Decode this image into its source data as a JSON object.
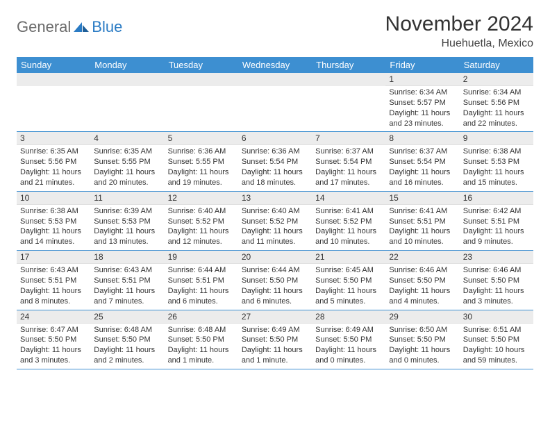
{
  "brand": {
    "part1": "General",
    "part2": "Blue"
  },
  "title": "November 2024",
  "location": "Huehuetla, Mexico",
  "colors": {
    "header_bg": "#3d8fd1",
    "header_text": "#ffffff",
    "daynum_bg": "#ececec",
    "border": "#3d8fd1",
    "brand_gray": "#6b6b6b",
    "brand_blue": "#2a7bc4"
  },
  "day_labels": [
    "Sunday",
    "Monday",
    "Tuesday",
    "Wednesday",
    "Thursday",
    "Friday",
    "Saturday"
  ],
  "weeks": [
    [
      {
        "n": "",
        "sr": "",
        "ss": "",
        "dl": ""
      },
      {
        "n": "",
        "sr": "",
        "ss": "",
        "dl": ""
      },
      {
        "n": "",
        "sr": "",
        "ss": "",
        "dl": ""
      },
      {
        "n": "",
        "sr": "",
        "ss": "",
        "dl": ""
      },
      {
        "n": "",
        "sr": "",
        "ss": "",
        "dl": ""
      },
      {
        "n": "1",
        "sr": "Sunrise: 6:34 AM",
        "ss": "Sunset: 5:57 PM",
        "dl": "Daylight: 11 hours and 23 minutes."
      },
      {
        "n": "2",
        "sr": "Sunrise: 6:34 AM",
        "ss": "Sunset: 5:56 PM",
        "dl": "Daylight: 11 hours and 22 minutes."
      }
    ],
    [
      {
        "n": "3",
        "sr": "Sunrise: 6:35 AM",
        "ss": "Sunset: 5:56 PM",
        "dl": "Daylight: 11 hours and 21 minutes."
      },
      {
        "n": "4",
        "sr": "Sunrise: 6:35 AM",
        "ss": "Sunset: 5:55 PM",
        "dl": "Daylight: 11 hours and 20 minutes."
      },
      {
        "n": "5",
        "sr": "Sunrise: 6:36 AM",
        "ss": "Sunset: 5:55 PM",
        "dl": "Daylight: 11 hours and 19 minutes."
      },
      {
        "n": "6",
        "sr": "Sunrise: 6:36 AM",
        "ss": "Sunset: 5:54 PM",
        "dl": "Daylight: 11 hours and 18 minutes."
      },
      {
        "n": "7",
        "sr": "Sunrise: 6:37 AM",
        "ss": "Sunset: 5:54 PM",
        "dl": "Daylight: 11 hours and 17 minutes."
      },
      {
        "n": "8",
        "sr": "Sunrise: 6:37 AM",
        "ss": "Sunset: 5:54 PM",
        "dl": "Daylight: 11 hours and 16 minutes."
      },
      {
        "n": "9",
        "sr": "Sunrise: 6:38 AM",
        "ss": "Sunset: 5:53 PM",
        "dl": "Daylight: 11 hours and 15 minutes."
      }
    ],
    [
      {
        "n": "10",
        "sr": "Sunrise: 6:38 AM",
        "ss": "Sunset: 5:53 PM",
        "dl": "Daylight: 11 hours and 14 minutes."
      },
      {
        "n": "11",
        "sr": "Sunrise: 6:39 AM",
        "ss": "Sunset: 5:53 PM",
        "dl": "Daylight: 11 hours and 13 minutes."
      },
      {
        "n": "12",
        "sr": "Sunrise: 6:40 AM",
        "ss": "Sunset: 5:52 PM",
        "dl": "Daylight: 11 hours and 12 minutes."
      },
      {
        "n": "13",
        "sr": "Sunrise: 6:40 AM",
        "ss": "Sunset: 5:52 PM",
        "dl": "Daylight: 11 hours and 11 minutes."
      },
      {
        "n": "14",
        "sr": "Sunrise: 6:41 AM",
        "ss": "Sunset: 5:52 PM",
        "dl": "Daylight: 11 hours and 10 minutes."
      },
      {
        "n": "15",
        "sr": "Sunrise: 6:41 AM",
        "ss": "Sunset: 5:51 PM",
        "dl": "Daylight: 11 hours and 10 minutes."
      },
      {
        "n": "16",
        "sr": "Sunrise: 6:42 AM",
        "ss": "Sunset: 5:51 PM",
        "dl": "Daylight: 11 hours and 9 minutes."
      }
    ],
    [
      {
        "n": "17",
        "sr": "Sunrise: 6:43 AM",
        "ss": "Sunset: 5:51 PM",
        "dl": "Daylight: 11 hours and 8 minutes."
      },
      {
        "n": "18",
        "sr": "Sunrise: 6:43 AM",
        "ss": "Sunset: 5:51 PM",
        "dl": "Daylight: 11 hours and 7 minutes."
      },
      {
        "n": "19",
        "sr": "Sunrise: 6:44 AM",
        "ss": "Sunset: 5:51 PM",
        "dl": "Daylight: 11 hours and 6 minutes."
      },
      {
        "n": "20",
        "sr": "Sunrise: 6:44 AM",
        "ss": "Sunset: 5:50 PM",
        "dl": "Daylight: 11 hours and 6 minutes."
      },
      {
        "n": "21",
        "sr": "Sunrise: 6:45 AM",
        "ss": "Sunset: 5:50 PM",
        "dl": "Daylight: 11 hours and 5 minutes."
      },
      {
        "n": "22",
        "sr": "Sunrise: 6:46 AM",
        "ss": "Sunset: 5:50 PM",
        "dl": "Daylight: 11 hours and 4 minutes."
      },
      {
        "n": "23",
        "sr": "Sunrise: 6:46 AM",
        "ss": "Sunset: 5:50 PM",
        "dl": "Daylight: 11 hours and 3 minutes."
      }
    ],
    [
      {
        "n": "24",
        "sr": "Sunrise: 6:47 AM",
        "ss": "Sunset: 5:50 PM",
        "dl": "Daylight: 11 hours and 3 minutes."
      },
      {
        "n": "25",
        "sr": "Sunrise: 6:48 AM",
        "ss": "Sunset: 5:50 PM",
        "dl": "Daylight: 11 hours and 2 minutes."
      },
      {
        "n": "26",
        "sr": "Sunrise: 6:48 AM",
        "ss": "Sunset: 5:50 PM",
        "dl": "Daylight: 11 hours and 1 minute."
      },
      {
        "n": "27",
        "sr": "Sunrise: 6:49 AM",
        "ss": "Sunset: 5:50 PM",
        "dl": "Daylight: 11 hours and 1 minute."
      },
      {
        "n": "28",
        "sr": "Sunrise: 6:49 AM",
        "ss": "Sunset: 5:50 PM",
        "dl": "Daylight: 11 hours and 0 minutes."
      },
      {
        "n": "29",
        "sr": "Sunrise: 6:50 AM",
        "ss": "Sunset: 5:50 PM",
        "dl": "Daylight: 11 hours and 0 minutes."
      },
      {
        "n": "30",
        "sr": "Sunrise: 6:51 AM",
        "ss": "Sunset: 5:50 PM",
        "dl": "Daylight: 10 hours and 59 minutes."
      }
    ]
  ]
}
